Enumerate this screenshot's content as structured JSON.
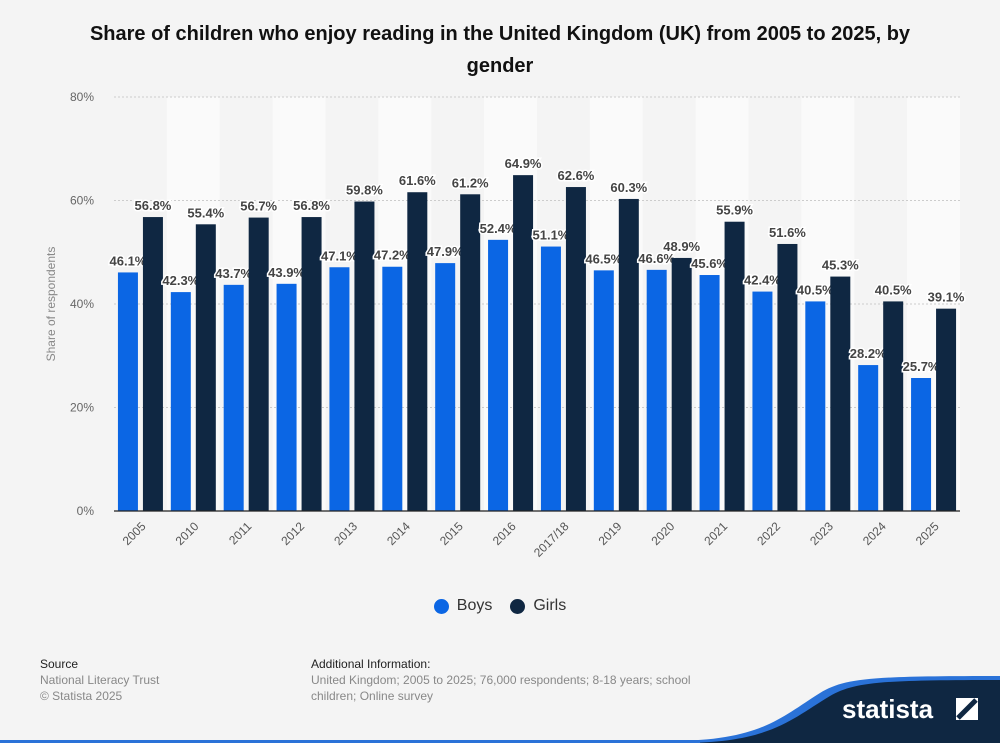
{
  "chart_data": {
    "type": "bar",
    "title": "Share of children who enjoy reading in the United Kingdom (UK) from 2005 to 2025, by gender",
    "xlabel": "",
    "ylabel": "Share of respondents",
    "ylim": [
      0,
      80
    ],
    "yticks": [
      "0%",
      "20%",
      "40%",
      "60%",
      "80%"
    ],
    "ytick_values": [
      0,
      20,
      40,
      60,
      80
    ],
    "grid": true,
    "legend_position": "bottom",
    "categories": [
      "2005",
      "2010",
      "2011",
      "2012",
      "2013",
      "2014",
      "2015",
      "2016",
      "2017/18",
      "2019",
      "2020",
      "2021",
      "2022",
      "2023",
      "2024",
      "2025"
    ],
    "series": [
      {
        "name": "Boys",
        "color": "#0b66e4",
        "values": [
          46.1,
          42.3,
          43.7,
          43.9,
          47.1,
          47.2,
          47.9,
          52.4,
          51.1,
          46.5,
          46.6,
          45.6,
          42.4,
          40.5,
          28.2,
          25.7
        ]
      },
      {
        "name": "Girls",
        "color": "#0f2742",
        "values": [
          56.8,
          55.4,
          56.7,
          56.8,
          59.8,
          61.6,
          61.2,
          64.9,
          62.6,
          60.3,
          48.9,
          55.9,
          51.6,
          45.3,
          40.5,
          39.1
        ]
      }
    ]
  },
  "footer": {
    "source_heading": "Source",
    "source_name": "National Literacy Trust",
    "copyright": "© Statista 2025",
    "info_heading": "Additional Information:",
    "info_line1": "United Kingdom; 2005 to 2025; 76,000 respondents; 8-18 years; school",
    "info_line2": "children; Online survey"
  },
  "logo": {
    "text": "statista"
  }
}
